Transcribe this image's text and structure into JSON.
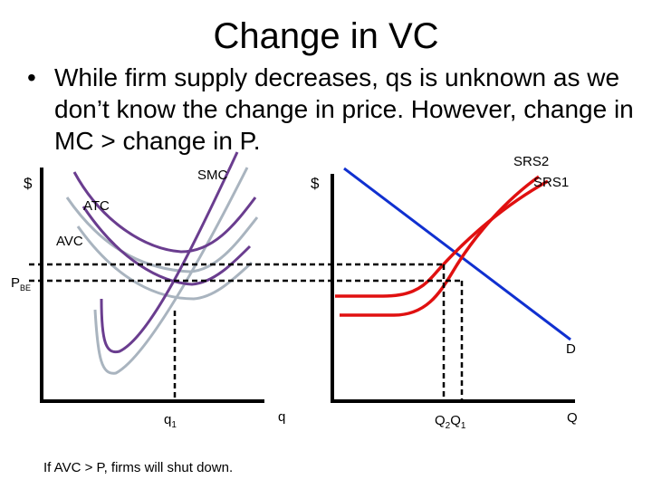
{
  "slide": {
    "title": "Change in VC",
    "bullet_marker": "•",
    "bullet": "While firm supply decreases, qs is unknown as we don’t know the change in price. However, change in MC > change in P.",
    "footnote": "If AVC > P, firms will shut down."
  },
  "firm_graph": {
    "y_axis_label": "$",
    "x_axis_label": "q",
    "curve_labels": {
      "smc": "SMC",
      "atc": "ATC",
      "avc": "AVC"
    },
    "price_label_main": "P",
    "price_label_sub": "BE",
    "quantity_label_main": "q",
    "quantity_label_sub": "1"
  },
  "market_graph": {
    "y_axis_label": "$",
    "x_axis_label": "Q",
    "supply_labels": {
      "srs2": "SRS2",
      "srs1": "SRS1"
    },
    "demand_label": "D",
    "q2_main": "Q",
    "q2_sub": "2",
    "q1_main": "Q",
    "q1_sub": "1"
  },
  "colors": {
    "cost_curves_new": "#6a3d8f",
    "cost_curves_old": "#a9b4bf",
    "supply": "#e01010",
    "demand": "#1030d0",
    "axes": "#000000"
  }
}
